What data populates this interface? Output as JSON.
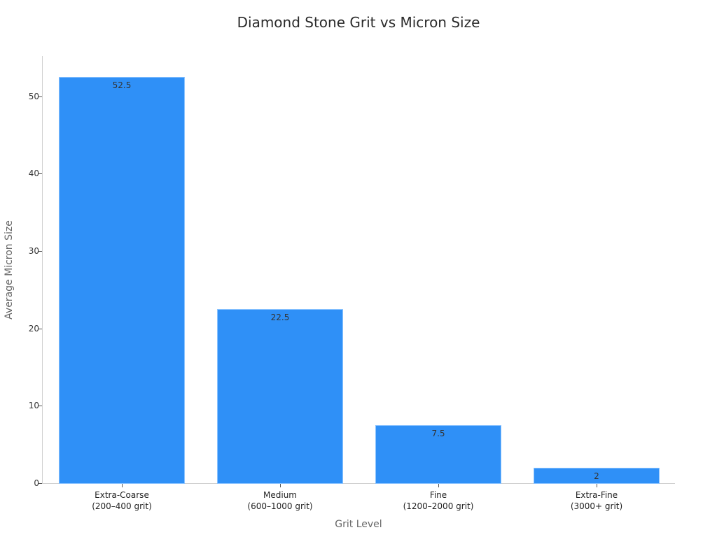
{
  "chart_data": {
    "type": "bar",
    "title": "Diamond Stone Grit vs Micron Size",
    "xlabel": "Grit Level",
    "ylabel": "Average Micron Size",
    "categories": [
      "Extra-Coarse\n(200–400 grit)",
      "Medium\n(600–1000 grit)",
      "Fine\n(1200–2000 grit)",
      "Extra-Fine\n(3000+ grit)"
    ],
    "category_lines": [
      [
        "Extra-Coarse",
        "(200–400 grit)"
      ],
      [
        "Medium",
        "(600–1000 grit)"
      ],
      [
        "Fine",
        "(1200–2000 grit)"
      ],
      [
        "Extra-Fine",
        "(3000+ grit)"
      ]
    ],
    "values": [
      52.5,
      22.5,
      7.5,
      2
    ],
    "value_labels": [
      "52.5",
      "22.5",
      "7.5",
      "2"
    ],
    "yticks": [
      "0",
      "10",
      "20",
      "30",
      "40",
      "50"
    ],
    "ylim": [
      0,
      55
    ],
    "grid": false,
    "legend": null,
    "bar_color": "#2f90f7"
  }
}
